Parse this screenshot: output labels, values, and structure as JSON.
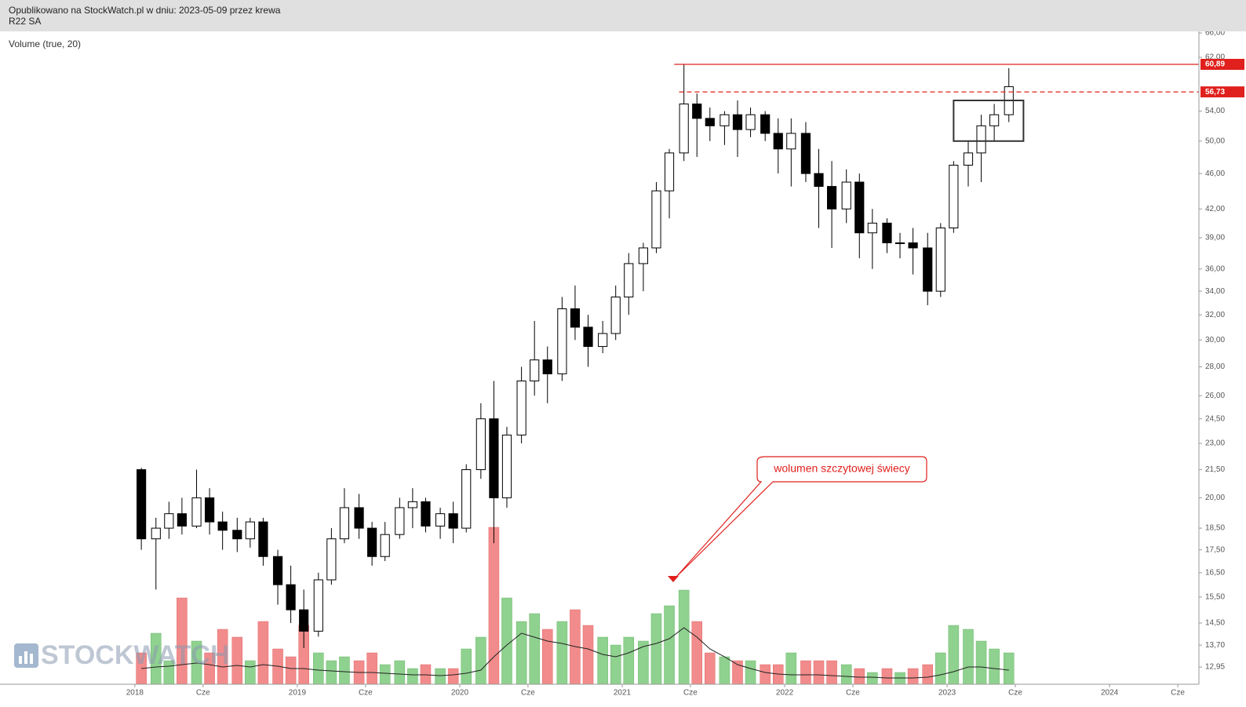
{
  "header": {
    "published": "Opublikowano na StockWatch.pl w dniu: 2023-05-09 przez krewa",
    "ticker": "R22 SA"
  },
  "chart_data": {
    "type": "candlestick",
    "volume_label": "Volume (true, 20)",
    "log_scale": true,
    "up_color": "#ffffff",
    "down_color": "#000000",
    "volume_up_color": "#8fd18f",
    "volume_down_color": "#f28b8b",
    "x": [
      2018.04,
      2018.13,
      2018.21,
      2018.29,
      2018.38,
      2018.46,
      2018.54,
      2018.63,
      2018.71,
      2018.79,
      2018.88,
      2018.96,
      2019.04,
      2019.13,
      2019.21,
      2019.29,
      2019.38,
      2019.46,
      2019.54,
      2019.63,
      2019.71,
      2019.79,
      2019.88,
      2019.96,
      2020.04,
      2020.13,
      2020.21,
      2020.29,
      2020.38,
      2020.46,
      2020.54,
      2020.63,
      2020.71,
      2020.79,
      2020.88,
      2020.96,
      2021.04,
      2021.13,
      2021.21,
      2021.29,
      2021.38,
      2021.46,
      2021.54,
      2021.63,
      2021.71,
      2021.79,
      2021.88,
      2021.96,
      2022.04,
      2022.13,
      2022.21,
      2022.29,
      2022.38,
      2022.46,
      2022.54,
      2022.63,
      2022.71,
      2022.79,
      2022.88,
      2022.96,
      2023.04,
      2023.13,
      2023.21,
      2023.29,
      2023.38
    ],
    "open": [
      21.5,
      18.0,
      18.5,
      19.2,
      18.6,
      20.0,
      18.8,
      18.4,
      18.0,
      18.8,
      17.2,
      16.0,
      15.0,
      14.2,
      16.2,
      18.0,
      19.5,
      18.5,
      17.2,
      18.2,
      19.5,
      19.8,
      18.6,
      19.2,
      18.5,
      21.5,
      24.5,
      20.0,
      23.5,
      27.0,
      28.5,
      27.5,
      32.5,
      31.0,
      29.5,
      30.5,
      33.5,
      36.5,
      38.0,
      44.0,
      48.5,
      55.0,
      53.0,
      52.0,
      53.5,
      51.5,
      53.5,
      51.0,
      49.0,
      51.0,
      46.0,
      44.5,
      42.0,
      45.0,
      39.5,
      40.5,
      38.5,
      38.5,
      38.0,
      34.0,
      40.0,
      47.0,
      48.5,
      52.0,
      53.5
    ],
    "high": [
      21.6,
      19.0,
      19.8,
      20.0,
      21.5,
      20.5,
      19.3,
      19.0,
      19.0,
      19.0,
      17.5,
      16.8,
      15.8,
      16.5,
      18.5,
      20.5,
      20.2,
      18.8,
      18.8,
      20.0,
      20.5,
      20.0,
      19.5,
      19.8,
      21.8,
      25.5,
      27.0,
      24.0,
      28.0,
      31.5,
      29.5,
      33.5,
      34.5,
      32.0,
      31.5,
      34.5,
      37.5,
      38.5,
      45.0,
      49.0,
      60.89,
      56.5,
      54.5,
      54.0,
      55.5,
      54.5,
      54.0,
      53.0,
      53.0,
      52.5,
      49.0,
      47.5,
      46.5,
      46.0,
      42.0,
      41.0,
      39.5,
      40.0,
      39.5,
      40.5,
      47.5,
      50.0,
      53.5,
      55.0,
      60.3
    ],
    "low": [
      17.5,
      15.8,
      18.0,
      18.2,
      18.5,
      18.2,
      17.5,
      17.4,
      17.6,
      16.8,
      15.2,
      14.5,
      13.6,
      14.0,
      16.0,
      17.8,
      18.0,
      16.8,
      17.0,
      18.0,
      18.5,
      18.3,
      18.0,
      17.8,
      18.3,
      21.0,
      17.8,
      19.5,
      23.0,
      26.0,
      25.5,
      27.0,
      30.0,
      28.0,
      29.0,
      30.0,
      32.0,
      34.0,
      37.5,
      41.0,
      47.5,
      48.0,
      50.0,
      49.5,
      48.0,
      50.5,
      50.0,
      46.0,
      44.5,
      45.0,
      40.0,
      38.0,
      40.5,
      37.0,
      36.0,
      37.5,
      37.0,
      35.5,
      32.8,
      33.5,
      39.5,
      44.5,
      45.0,
      50.0,
      52.5
    ],
    "close": [
      18.0,
      18.5,
      19.2,
      18.6,
      20.0,
      18.8,
      18.4,
      18.0,
      18.8,
      17.2,
      16.0,
      15.0,
      14.2,
      16.2,
      18.0,
      19.5,
      18.5,
      17.2,
      18.2,
      19.5,
      19.8,
      18.6,
      19.2,
      18.5,
      21.5,
      24.5,
      20.0,
      23.5,
      27.0,
      28.5,
      27.5,
      32.5,
      31.0,
      29.5,
      30.5,
      33.5,
      36.5,
      38.0,
      44.0,
      48.5,
      55.0,
      53.0,
      52.0,
      53.5,
      51.5,
      53.5,
      51.0,
      49.0,
      51.0,
      46.0,
      44.5,
      42.0,
      45.0,
      39.5,
      40.5,
      38.5,
      38.5,
      38.0,
      34.0,
      40.0,
      47.0,
      48.5,
      52.0,
      53.5,
      57.5
    ],
    "volume": [
      40,
      65,
      30,
      110,
      55,
      40,
      70,
      60,
      30,
      80,
      45,
      35,
      75,
      40,
      30,
      35,
      30,
      40,
      25,
      30,
      20,
      25,
      20,
      20,
      45,
      60,
      200,
      110,
      80,
      90,
      70,
      80,
      95,
      75,
      60,
      50,
      60,
      55,
      90,
      100,
      120,
      80,
      40,
      35,
      30,
      30,
      25,
      25,
      40,
      30,
      30,
      30,
      25,
      20,
      15,
      20,
      15,
      20,
      25,
      40,
      75,
      70,
      55,
      45,
      40
    ],
    "volume_ma": [
      20,
      22,
      23,
      25,
      27,
      25,
      22,
      24,
      22,
      25,
      23,
      20,
      20,
      18,
      17,
      16,
      15,
      15,
      14,
      13,
      12,
      12,
      11,
      12,
      14,
      18,
      35,
      50,
      65,
      60,
      55,
      52,
      48,
      45,
      38,
      35,
      40,
      48,
      52,
      58,
      72,
      60,
      45,
      35,
      25,
      20,
      15,
      13,
      12,
      12,
      12,
      11,
      10,
      9,
      9,
      8,
      8,
      8,
      9,
      12,
      16,
      22,
      22,
      20,
      18
    ],
    "xlim": [
      2017.17,
      2024.55
    ],
    "ylim": [
      12.39,
      66.27
    ],
    "xticks": [
      2018,
      {
        "value": 2018.42,
        "label": "Cze"
      },
      2019,
      {
        "value": 2019.42,
        "label": "Cze"
      },
      2020,
      {
        "value": 2020.42,
        "label": "Cze"
      },
      2021,
      {
        "value": 2021.42,
        "label": "Cze"
      },
      2022,
      {
        "value": 2022.42,
        "label": "Cze"
      },
      2023,
      {
        "value": 2023.42,
        "label": "Cze"
      },
      2024,
      {
        "value": 2024.42,
        "label": "Cze"
      }
    ],
    "yticks": [
      {
        "value": 66,
        "label": "66,00"
      },
      {
        "value": 62,
        "label": "62,00"
      },
      {
        "value": 54,
        "label": "54,00"
      },
      {
        "value": 50,
        "label": "50,00"
      },
      {
        "value": 46,
        "label": "46,00"
      },
      {
        "value": 42,
        "label": "42,00"
      },
      {
        "value": 39,
        "label": "39,00"
      },
      {
        "value": 36,
        "label": "36,00"
      },
      {
        "value": 34,
        "label": "34,00"
      },
      {
        "value": 32,
        "label": "32,00"
      },
      {
        "value": 30,
        "label": "30,00"
      },
      {
        "value": 28,
        "label": "28,00"
      },
      {
        "value": 26,
        "label": "26,00"
      },
      {
        "value": 24.5,
        "label": "24,50"
      },
      {
        "value": 23,
        "label": "23,00"
      },
      {
        "value": 21.5,
        "label": "21,50"
      },
      {
        "value": 20,
        "label": "20,00"
      },
      {
        "value": 18.5,
        "label": "18,50"
      },
      {
        "value": 17.5,
        "label": "17,50"
      },
      {
        "value": 16.5,
        "label": "16,50"
      },
      {
        "value": 15.5,
        "label": "15,50"
      },
      {
        "value": 14.5,
        "label": "14,50"
      },
      {
        "value": 13.7,
        "label": "13,70"
      },
      {
        "value": 12.95,
        "label": "12,95"
      }
    ],
    "hlines": [
      {
        "value": 60.89,
        "label": "60,89",
        "from": 2021.32,
        "style": "solid",
        "color": "#e0201c"
      },
      {
        "value": 56.73,
        "label": "56,73",
        "from": 2021.35,
        "style": "dashed",
        "color": "#e0201c"
      }
    ],
    "box": {
      "x": [
        2023.04,
        2023.47
      ],
      "y": [
        50.0,
        55.5
      ]
    },
    "annotation": "wolumen szczytowej świecy",
    "watermark": "STOCKWATCH"
  }
}
